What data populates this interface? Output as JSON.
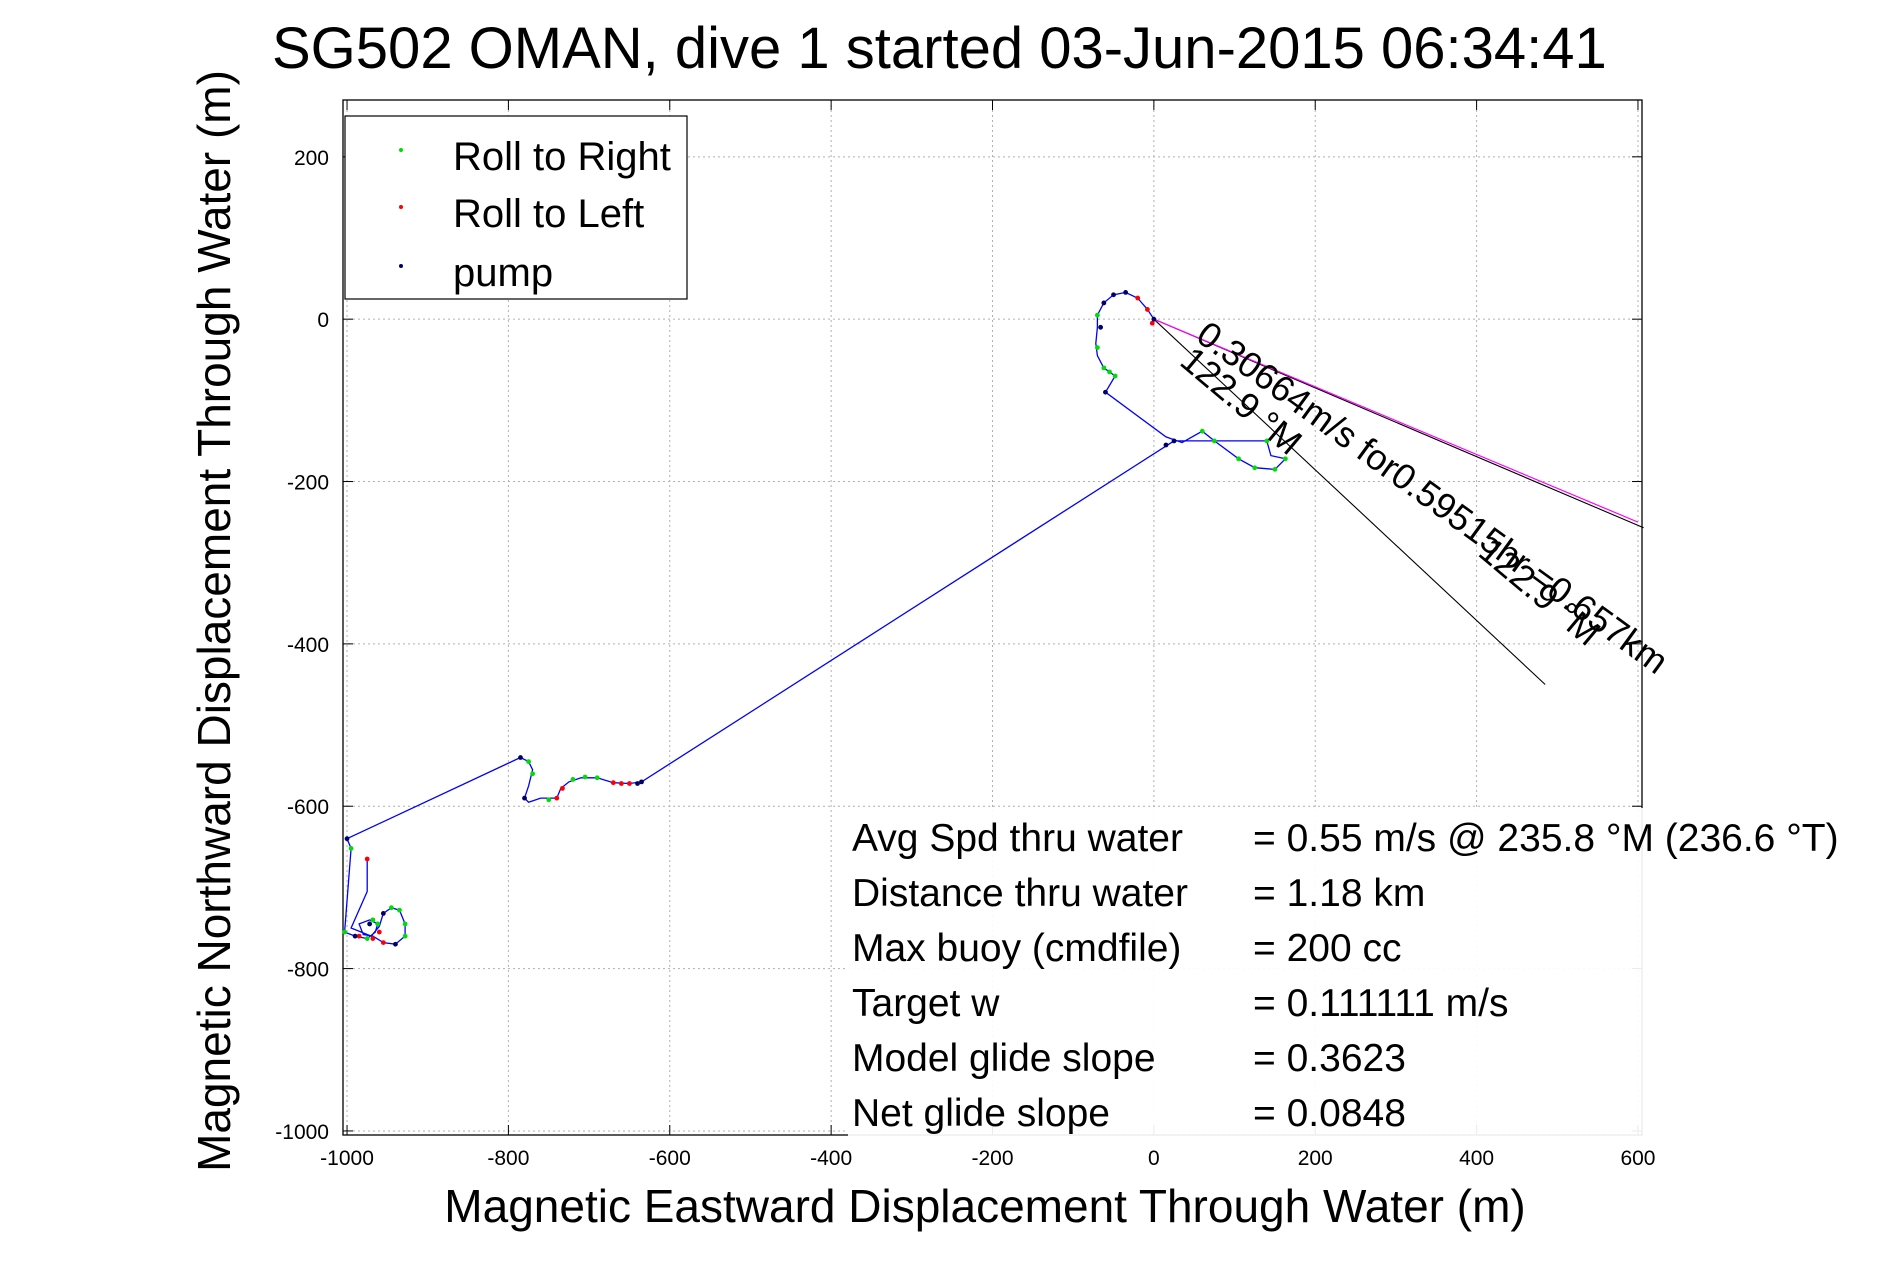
{
  "chart_data": {
    "type": "line",
    "title": "SG502 OMAN, dive 1 started 03-Jun-2015 06:34:41",
    "xlabel": "Magnetic Eastward Displacement Through Water (m)",
    "ylabel": "Magnetic Northward Displacement Through Water (m)",
    "xlim": [
      -1005,
      605
    ],
    "ylim": [
      -1005,
      270
    ],
    "xticks": [
      -1000,
      -800,
      -600,
      -400,
      -200,
      0,
      200,
      400,
      600
    ],
    "yticks": [
      -1000,
      -800,
      -600,
      -400,
      -200,
      0,
      200
    ],
    "grid": true,
    "legend_position": "top-left",
    "legend": [
      {
        "label": "Roll to Right",
        "color": "#00dd00"
      },
      {
        "label": "Roll to Left",
        "color": "#ff0000"
      },
      {
        "label": "pump",
        "color": "#000066"
      }
    ],
    "track": {
      "color": "#0000ff",
      "points": [
        [
          0,
          0
        ],
        [
          -8,
          12
        ],
        [
          -20,
          26
        ],
        [
          -35,
          33
        ],
        [
          -50,
          30
        ],
        [
          -62,
          20
        ],
        [
          -70,
          5
        ],
        [
          -70,
          -10
        ],
        [
          -72,
          -30
        ],
        [
          -70,
          -45
        ],
        [
          -62,
          -60
        ],
        [
          -55,
          -65
        ],
        [
          -48,
          -70
        ],
        [
          -60,
          -90
        ],
        [
          15,
          -145
        ],
        [
          35,
          -152
        ],
        [
          60,
          -138
        ],
        [
          75,
          -150
        ],
        [
          105,
          -172
        ],
        [
          125,
          -183
        ],
        [
          150,
          -185
        ],
        [
          163,
          -172
        ],
        [
          145,
          -168
        ],
        [
          140,
          -150
        ],
        [
          120,
          -150
        ],
        [
          25,
          -150
        ],
        [
          -635,
          -570
        ],
        [
          -650,
          -572
        ],
        [
          -670,
          -571
        ],
        [
          -690,
          -565
        ],
        [
          -710,
          -565
        ],
        [
          -725,
          -570
        ],
        [
          -735,
          -578
        ],
        [
          -740,
          -590
        ],
        [
          -760,
          -590
        ],
        [
          -775,
          -595
        ],
        [
          -780,
          -590
        ],
        [
          -775,
          -575
        ],
        [
          -770,
          -555
        ],
        [
          -775,
          -545
        ],
        [
          -785,
          -540
        ],
        [
          -1000,
          -640
        ],
        [
          -995,
          -652
        ],
        [
          -1003,
          -755
        ],
        [
          -990,
          -760
        ],
        [
          -975,
          -763
        ],
        [
          -965,
          -755
        ],
        [
          -962,
          -745
        ],
        [
          -972,
          -740
        ],
        [
          -985,
          -745
        ],
        [
          -980,
          -758
        ],
        [
          -968,
          -760
        ],
        [
          -955,
          -768
        ],
        [
          -940,
          -770
        ],
        [
          -928,
          -760
        ],
        [
          -928,
          -745
        ],
        [
          -935,
          -728
        ],
        [
          -945,
          -725
        ],
        [
          -955,
          -732
        ],
        [
          -960,
          -748
        ],
        [
          -970,
          -760
        ],
        [
          -995,
          -750
        ],
        [
          -975,
          -705
        ],
        [
          -975,
          -665
        ]
      ]
    },
    "markers": {
      "roll_right": [
        [
          -70,
          5
        ],
        [
          -70,
          -35
        ],
        [
          -62,
          -60
        ],
        [
          -55,
          -65
        ],
        [
          -48,
          -70
        ],
        [
          60,
          -138
        ],
        [
          75,
          -150
        ],
        [
          105,
          -172
        ],
        [
          125,
          -183
        ],
        [
          150,
          -185
        ],
        [
          163,
          -172
        ],
        [
          140,
          -150
        ],
        [
          -690,
          -565
        ],
        [
          -705,
          -564
        ],
        [
          -720,
          -567
        ],
        [
          -750,
          -592
        ],
        [
          -770,
          -560
        ],
        [
          -775,
          -545
        ],
        [
          -995,
          -652
        ],
        [
          -1003,
          -755
        ],
        [
          -975,
          -763
        ],
        [
          -962,
          -745
        ],
        [
          -945,
          -725
        ],
        [
          -935,
          -728
        ],
        [
          -928,
          -745
        ],
        [
          -928,
          -760
        ],
        [
          -968,
          -740
        ]
      ],
      "roll_left": [
        [
          -8,
          12
        ],
        [
          -2,
          -5
        ],
        [
          -20,
          26
        ],
        [
          -650,
          -572
        ],
        [
          -660,
          -572
        ],
        [
          -670,
          -571
        ],
        [
          -733,
          -578
        ],
        [
          -740,
          -590
        ],
        [
          -985,
          -760
        ],
        [
          -968,
          -763
        ],
        [
          -955,
          -768
        ],
        [
          -975,
          -665
        ],
        [
          -960,
          -755
        ]
      ],
      "pump": [
        [
          0,
          0
        ],
        [
          -35,
          33
        ],
        [
          -50,
          30
        ],
        [
          -62,
          20
        ],
        [
          -66,
          -10
        ],
        [
          -60,
          -90
        ],
        [
          15,
          -155
        ],
        [
          25,
          -150
        ],
        [
          -635,
          -570
        ],
        [
          -640,
          -572
        ],
        [
          -780,
          -590
        ],
        [
          -785,
          -540
        ],
        [
          -1000,
          -640
        ],
        [
          -990,
          -760
        ],
        [
          -972,
          -745
        ],
        [
          -955,
          -732
        ],
        [
          -940,
          -770
        ]
      ]
    },
    "heading_lines": [
      {
        "from": [
          0,
          0
        ],
        "to": [
          607,
          -257
        ]
      },
      {
        "from": [
          0,
          0
        ],
        "to": [
          485,
          -450
        ]
      }
    ],
    "heading_line_color": "#000000",
    "net_line": {
      "from": [
        0,
        0
      ],
      "to": [
        600,
        -250
      ],
      "color": "#ff00ff"
    },
    "annotations": [
      {
        "text": "0.30664m/s for0.59515hr =0.657km",
        "at": [
          50,
          -25
        ],
        "angle": 36
      },
      {
        "text": "122.9 °M",
        "at": [
          30,
          -55
        ],
        "angle": 40
      },
      {
        "text": "122.9 °M",
        "at": [
          400,
          -290
        ],
        "angle": 40
      }
    ],
    "info_rows": [
      {
        "label": "Avg Spd thru water",
        "value": "=  0.55 m/s @ 235.8 °M (236.6 °T)"
      },
      {
        "label": "Distance thru water",
        "value": "=  1.18 km"
      },
      {
        "label": "Max buoy (cmdfile)",
        "value": "= 200 cc"
      },
      {
        "label": "Target w",
        "value": "= 0.111111 m/s"
      },
      {
        "label": "Model glide slope",
        "value": "= 0.3623"
      },
      {
        "label": "Net glide slope",
        "value": "= 0.0848"
      }
    ]
  }
}
